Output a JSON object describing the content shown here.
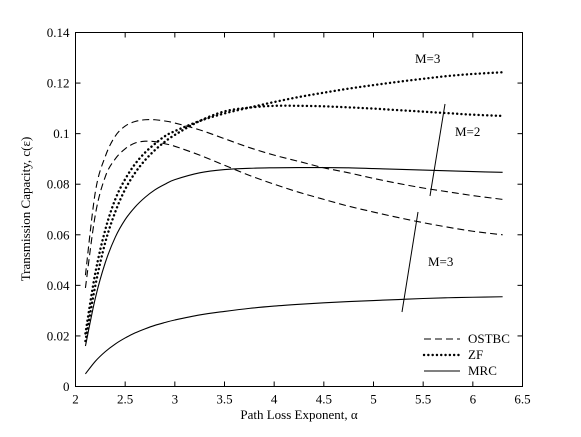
{
  "chart_data": {
    "type": "line",
    "xlabel": "Path Loss Exponent, α",
    "ylabel": "Transmission Capacity, c(ε)",
    "xlim": [
      2,
      6.5
    ],
    "ylim": [
      0,
      0.14
    ],
    "xticks": [
      "2",
      "2.5",
      "3",
      "3.5",
      "4",
      "4.5",
      "5",
      "5.5",
      "6",
      "6.5"
    ],
    "yticks": [
      "0",
      "0.02",
      "0.04",
      "0.06",
      "0.08",
      "0.1",
      "0.12",
      "0.14"
    ],
    "grid": false,
    "legend_position": "bottom-right",
    "legend": [
      {
        "label": "OSTBC",
        "style": "dashed"
      },
      {
        "label": "ZF",
        "style": "dotted"
      },
      {
        "label": "MRC",
        "style": "solid"
      }
    ],
    "annotations": [
      "M=3",
      "M=2",
      "M=3"
    ],
    "series": [
      {
        "name": "OSTBC",
        "group": "M=3",
        "style": "dashed",
        "x": [
          2.1,
          2.2,
          2.3,
          2.4,
          2.5,
          2.6,
          2.7,
          2.8,
          2.9,
          3.0,
          3.25,
          3.5,
          3.75,
          4.0,
          4.25,
          4.5,
          4.75,
          5.0,
          5.25,
          5.5,
          5.75,
          6.0,
          6.3
        ],
        "y": [
          0.044,
          0.077,
          0.091,
          0.099,
          0.103,
          0.1048,
          0.1055,
          0.1055,
          0.105,
          0.1042,
          0.1015,
          0.098,
          0.0945,
          0.0915,
          0.089,
          0.0865,
          0.0845,
          0.0823,
          0.0803,
          0.0785,
          0.077,
          0.0755,
          0.074
        ]
      },
      {
        "name": "OSTBC",
        "group": "M=2",
        "style": "dashed",
        "x": [
          2.1,
          2.2,
          2.3,
          2.4,
          2.5,
          2.6,
          2.7,
          2.8,
          2.9,
          3.0,
          3.25,
          3.5,
          3.75,
          4.0,
          4.25,
          4.5,
          4.75,
          5.0,
          5.25,
          5.5,
          5.75,
          6.0,
          6.3
        ],
        "y": [
          0.039,
          0.068,
          0.083,
          0.09,
          0.094,
          0.0963,
          0.097,
          0.0968,
          0.096,
          0.095,
          0.0915,
          0.0875,
          0.0835,
          0.08,
          0.0768,
          0.074,
          0.0713,
          0.069,
          0.0668,
          0.0648,
          0.063,
          0.0614,
          0.06
        ]
      },
      {
        "name": "ZF",
        "group": "M=3",
        "style": "dotted",
        "x": [
          2.1,
          2.2,
          2.3,
          2.4,
          2.5,
          2.6,
          2.7,
          2.8,
          2.9,
          3.0,
          3.25,
          3.5,
          3.75,
          4.0,
          4.25,
          4.5,
          4.75,
          5.0,
          5.25,
          5.5,
          5.75,
          6.0,
          6.3
        ],
        "y": [
          0.021,
          0.045,
          0.062,
          0.074,
          0.082,
          0.088,
          0.0925,
          0.096,
          0.099,
          0.101,
          0.105,
          0.108,
          0.1103,
          0.1125,
          0.1145,
          0.1162,
          0.1178,
          0.1192,
          0.1205,
          0.1217,
          0.1228,
          0.1236,
          0.1243
        ]
      },
      {
        "name": "ZF",
        "group": "M=2",
        "style": "dotted",
        "x": [
          2.1,
          2.2,
          2.3,
          2.4,
          2.5,
          2.6,
          2.7,
          2.8,
          2.9,
          3.0,
          3.25,
          3.5,
          3.75,
          4.0,
          4.25,
          4.5,
          4.75,
          5.0,
          5.25,
          5.5,
          5.75,
          6.0,
          6.3
        ],
        "y": [
          0.018,
          0.04,
          0.057,
          0.069,
          0.078,
          0.0845,
          0.0895,
          0.0935,
          0.0968,
          0.0995,
          0.105,
          0.1088,
          0.1103,
          0.111,
          0.111,
          0.1108,
          0.1104,
          0.1099,
          0.1093,
          0.1087,
          0.1081,
          0.1075,
          0.107
        ]
      },
      {
        "name": "MRC",
        "group": "M=2",
        "style": "solid",
        "x": [
          2.1,
          2.2,
          2.3,
          2.4,
          2.5,
          2.6,
          2.7,
          2.8,
          2.9,
          3.0,
          3.25,
          3.5,
          3.75,
          4.0,
          4.25,
          4.5,
          4.75,
          5.0,
          5.25,
          5.5,
          5.75,
          6.0,
          6.3
        ],
        "y": [
          0.016,
          0.035,
          0.049,
          0.059,
          0.066,
          0.071,
          0.0748,
          0.0778,
          0.08,
          0.0818,
          0.0845,
          0.0858,
          0.0863,
          0.0865,
          0.0866,
          0.0866,
          0.0865,
          0.0862,
          0.0859,
          0.0856,
          0.0853,
          0.085,
          0.0847
        ]
      },
      {
        "name": "MRC",
        "group": "M=3",
        "style": "solid",
        "x": [
          2.1,
          2.2,
          2.3,
          2.4,
          2.5,
          2.6,
          2.7,
          2.8,
          2.9,
          3.0,
          3.25,
          3.5,
          3.75,
          4.0,
          4.25,
          4.5,
          4.75,
          5.0,
          5.25,
          5.5,
          5.75,
          6.0,
          6.3
        ],
        "y": [
          0.005,
          0.01,
          0.0138,
          0.0168,
          0.0192,
          0.0212,
          0.0228,
          0.0242,
          0.0253,
          0.0263,
          0.0283,
          0.0297,
          0.0309,
          0.0318,
          0.0325,
          0.0331,
          0.0336,
          0.034,
          0.0344,
          0.0348,
          0.0351,
          0.0353,
          0.0355
        ]
      }
    ]
  }
}
